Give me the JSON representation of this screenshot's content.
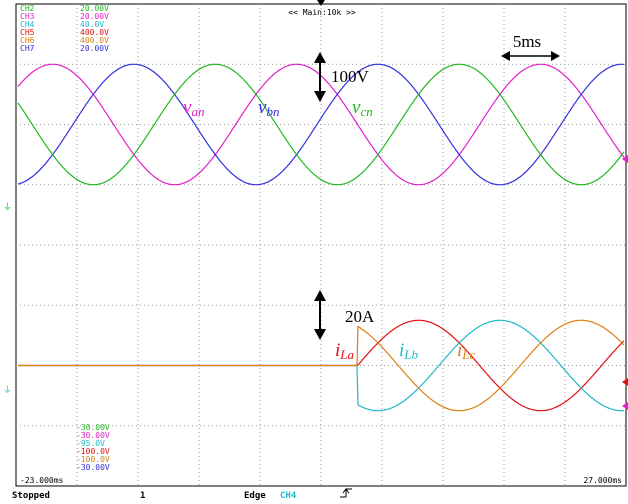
{
  "header": {
    "timebase": "<< Main:10k >>",
    "channels": [
      {
        "name": "CH2",
        "scale": "20.00V",
        "color": "#1fb81f"
      },
      {
        "name": "CH3",
        "scale": "20.00V",
        "color": "#e020c8"
      },
      {
        "name": "CH4",
        "scale": "40.0V",
        "color": "#20b8c8"
      },
      {
        "name": "CH5",
        "scale": "400.0V",
        "color": "#e01010"
      },
      {
        "name": "CH6",
        "scale": "400.0V",
        "color": "#e07f10"
      },
      {
        "name": "CH7",
        "scale": "20.00V",
        "color": "#3030e0"
      }
    ]
  },
  "offsets": [
    {
      "text": "-30.00V",
      "color": "#1fb81f"
    },
    {
      "text": "-30.00V",
      "color": "#e020c8"
    },
    {
      "text": "-95.0V",
      "color": "#20b8c8"
    },
    {
      "text": "-100.0V",
      "color": "#e01010"
    },
    {
      "text": "-100.0V",
      "color": "#e07f10"
    },
    {
      "text": "-30.00V",
      "color": "#3030e0"
    }
  ],
  "time_left": "-23.000ms",
  "time_right": "27.000ms",
  "status": {
    "state": "Stopped",
    "count": "1",
    "trigger_type": "Edge",
    "trigger_channel": "CH4"
  },
  "annotations": {
    "time_scale": "5ms",
    "voltage_scale": "100V",
    "current_scale": "20A",
    "van": {
      "main": "v",
      "sub": "an"
    },
    "vbn": {
      "main": "v",
      "sub": "bn"
    },
    "vcn": {
      "main": "v",
      "sub": "cn"
    },
    "ila": {
      "main": "i",
      "sub": "La"
    },
    "ilb": {
      "main": "i",
      "sub": "Lb"
    },
    "ilc": {
      "main": "i",
      "sub": "Lc"
    }
  },
  "chart_data": {
    "type": "line",
    "x_unit": "ms",
    "xlim": [
      -23,
      27
    ],
    "grid": true,
    "voltage_panel": {
      "unit": "V",
      "ylim": [
        -200,
        200
      ],
      "series": [
        {
          "name": "van",
          "color": "#e020c8",
          "amplitude": 100,
          "frequency_hz": 50,
          "phase_deg": 90
        },
        {
          "name": "vbn",
          "color": "#3030e0",
          "amplitude": 100,
          "frequency_hz": 50,
          "phase_deg": -30
        },
        {
          "name": "vcn",
          "color": "#1fb81f",
          "amplitude": 100,
          "frequency_hz": 50,
          "phase_deg": 210
        }
      ]
    },
    "current_panel": {
      "unit": "A",
      "ylim": [
        -40,
        40
      ],
      "start_ms": 5,
      "series": [
        {
          "name": "iLa",
          "color": "#e01010",
          "amplitude": 15,
          "frequency_hz": 50,
          "phase_deg": -90
        },
        {
          "name": "iLb",
          "color": "#20b8c8",
          "amplitude": 15,
          "frequency_hz": 50,
          "phase_deg": 150
        },
        {
          "name": "iLc",
          "color": "#e07f10",
          "amplitude": 15,
          "frequency_hz": 50,
          "phase_deg": 30
        }
      ]
    }
  }
}
